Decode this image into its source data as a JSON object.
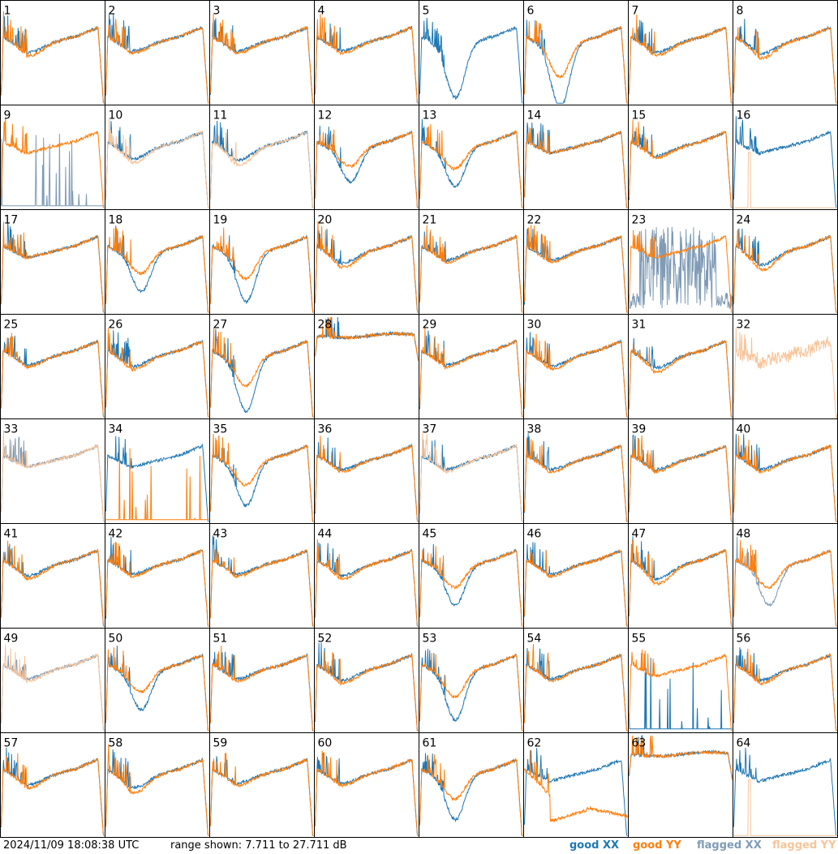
{
  "timestamp": "2024/11/09 18:08:38 UTC",
  "range_label": "range shown: 7.711 to 27.711 dB",
  "legend": [
    {
      "label": "good XX",
      "color": "#1f77b4"
    },
    {
      "label": "good YY",
      "color": "#ff7f0e"
    },
    {
      "label": "flagged XX",
      "color": "#7f9bb5"
    },
    {
      "label": "flagged YY",
      "color": "#f7c49a"
    }
  ],
  "chart_data": {
    "type": "line",
    "grid": "8x8 small multiples",
    "ylim_db": [
      7.711,
      27.711
    ],
    "series_names": [
      "good XX",
      "good YY",
      "flagged XX",
      "flagged YY"
    ],
    "panels": [
      {
        "id": "1",
        "xx": "good",
        "yy": "good",
        "shape": "std",
        "dip": 0.15
      },
      {
        "id": "2",
        "xx": "good",
        "yy": "good",
        "shape": "std",
        "dip": 0.1
      },
      {
        "id": "3",
        "xx": "good",
        "yy": "good",
        "shape": "std",
        "dip": 0.1
      },
      {
        "id": "4",
        "xx": "good",
        "yy": "good",
        "shape": "std",
        "dip": 0.1
      },
      {
        "id": "5",
        "xx": "good",
        "yy": "none",
        "shape": "valley",
        "dip": 0.5
      },
      {
        "id": "6",
        "xx": "good",
        "yy": "good",
        "shape": "valley",
        "dip": 0.6
      },
      {
        "id": "7",
        "xx": "good",
        "yy": "good",
        "shape": "std",
        "dip": 0.15
      },
      {
        "id": "8",
        "xx": "good",
        "yy": "good",
        "shape": "std",
        "dip": 0.2
      },
      {
        "id": "9",
        "xx": "flagged",
        "yy": "good",
        "shape": "xxlow",
        "dip": 0.1
      },
      {
        "id": "10",
        "xx": "good",
        "yy": "flagged",
        "shape": "std",
        "dip": 0.2
      },
      {
        "id": "11",
        "xx": "good",
        "yy": "flagged",
        "shape": "std",
        "dip": 0.25
      },
      {
        "id": "12",
        "xx": "good",
        "yy": "good",
        "shape": "valley",
        "dip": 0.3
      },
      {
        "id": "13",
        "xx": "good",
        "yy": "good",
        "shape": "valley",
        "dip": 0.35
      },
      {
        "id": "14",
        "xx": "good",
        "yy": "good",
        "shape": "smooth",
        "dip": 0.05
      },
      {
        "id": "15",
        "xx": "good",
        "yy": "good",
        "shape": "std",
        "dip": 0.1
      },
      {
        "id": "16",
        "xx": "good",
        "yy": "flagged",
        "shape": "yyspike",
        "dip": 0.1
      },
      {
        "id": "17",
        "xx": "good",
        "yy": "good",
        "shape": "smooth",
        "dip": 0.05
      },
      {
        "id": "18",
        "xx": "good",
        "yy": "good",
        "shape": "valley",
        "dip": 0.35
      },
      {
        "id": "19",
        "xx": "good",
        "yy": "good",
        "shape": "valley",
        "dip": 0.45
      },
      {
        "id": "20",
        "xx": "good",
        "yy": "good",
        "shape": "std",
        "dip": 0.2
      },
      {
        "id": "21",
        "xx": "good",
        "yy": "good",
        "shape": "std",
        "dip": 0.1
      },
      {
        "id": "22",
        "xx": "good",
        "yy": "good",
        "shape": "std",
        "dip": 0.1
      },
      {
        "id": "23",
        "xx": "flagged",
        "yy": "good",
        "shape": "xxnoise",
        "dip": 0.1
      },
      {
        "id": "24",
        "xx": "good",
        "yy": "good",
        "shape": "std",
        "dip": 0.25
      },
      {
        "id": "25",
        "xx": "good",
        "yy": "good",
        "shape": "std",
        "dip": 0.1
      },
      {
        "id": "26",
        "xx": "good",
        "yy": "good",
        "shape": "std",
        "dip": 0.15
      },
      {
        "id": "27",
        "xx": "good",
        "yy": "good",
        "shape": "valley",
        "dip": 0.5
      },
      {
        "id": "28",
        "xx": "good",
        "yy": "good",
        "shape": "flat",
        "dip": 0.0
      },
      {
        "id": "29",
        "xx": "good",
        "yy": "good",
        "shape": "std",
        "dip": 0.1
      },
      {
        "id": "30",
        "xx": "good",
        "yy": "good",
        "shape": "std",
        "dip": 0.15
      },
      {
        "id": "31",
        "xx": "good",
        "yy": "good",
        "shape": "std",
        "dip": 0.2
      },
      {
        "id": "32",
        "xx": "none",
        "yy": "flagged",
        "shape": "noisy",
        "dip": 0.2
      },
      {
        "id": "33",
        "xx": "flagged",
        "yy": "flagged",
        "shape": "smooth",
        "dip": 0.1
      },
      {
        "id": "34",
        "xx": "good",
        "yy": "good",
        "shape": "yylow",
        "dip": 0.1
      },
      {
        "id": "35",
        "xx": "good",
        "yy": "good",
        "shape": "valley",
        "dip": 0.4
      },
      {
        "id": "36",
        "xx": "good",
        "yy": "good",
        "shape": "std",
        "dip": 0.1
      },
      {
        "id": "37",
        "xx": "good",
        "yy": "flagged",
        "shape": "std",
        "dip": 0.1
      },
      {
        "id": "38",
        "xx": "good",
        "yy": "good",
        "shape": "std",
        "dip": 0.1
      },
      {
        "id": "39",
        "xx": "good",
        "yy": "good",
        "shape": "std",
        "dip": 0.1
      },
      {
        "id": "40",
        "xx": "good",
        "yy": "good",
        "shape": "std",
        "dip": 0.1
      },
      {
        "id": "41",
        "xx": "good",
        "yy": "good",
        "shape": "std",
        "dip": 0.15
      },
      {
        "id": "42",
        "xx": "good",
        "yy": "good",
        "shape": "std",
        "dip": 0.1
      },
      {
        "id": "43",
        "xx": "good",
        "yy": "good",
        "shape": "std",
        "dip": 0.1
      },
      {
        "id": "44",
        "xx": "good",
        "yy": "good",
        "shape": "std",
        "dip": 0.15
      },
      {
        "id": "45",
        "xx": "good",
        "yy": "good",
        "shape": "valley",
        "dip": 0.35
      },
      {
        "id": "46",
        "xx": "good",
        "yy": "good",
        "shape": "std",
        "dip": 0.1
      },
      {
        "id": "47",
        "xx": "good",
        "yy": "good",
        "shape": "std",
        "dip": 0.25
      },
      {
        "id": "48",
        "xx": "flagged",
        "yy": "good",
        "shape": "valley",
        "dip": 0.35
      },
      {
        "id": "49",
        "xx": "flagged",
        "yy": "flagged",
        "shape": "std",
        "dip": 0.1
      },
      {
        "id": "50",
        "xx": "good",
        "yy": "good",
        "shape": "valley",
        "dip": 0.35
      },
      {
        "id": "51",
        "xx": "good",
        "yy": "good",
        "shape": "std",
        "dip": 0.1
      },
      {
        "id": "52",
        "xx": "good",
        "yy": "good",
        "shape": "std",
        "dip": 0.15
      },
      {
        "id": "53",
        "xx": "good",
        "yy": "good",
        "shape": "valley",
        "dip": 0.45
      },
      {
        "id": "54",
        "xx": "good",
        "yy": "good",
        "shape": "std",
        "dip": 0.1
      },
      {
        "id": "55",
        "xx": "good",
        "yy": "good",
        "shape": "xxlow",
        "dip": 0.1
      },
      {
        "id": "56",
        "xx": "good",
        "yy": "good",
        "shape": "std",
        "dip": 0.15
      },
      {
        "id": "57",
        "xx": "good",
        "yy": "good",
        "shape": "std",
        "dip": 0.15
      },
      {
        "id": "58",
        "xx": "good",
        "yy": "good",
        "shape": "std",
        "dip": 0.25
      },
      {
        "id": "59",
        "xx": "good",
        "yy": "good",
        "shape": "std",
        "dip": 0.1
      },
      {
        "id": "60",
        "xx": "good",
        "yy": "good",
        "shape": "std",
        "dip": 0.1
      },
      {
        "id": "61",
        "xx": "good",
        "yy": "good",
        "shape": "valley",
        "dip": 0.4
      },
      {
        "id": "62",
        "xx": "good",
        "yy": "good",
        "shape": "yylow2",
        "dip": 0.3
      },
      {
        "id": "63",
        "xx": "good",
        "yy": "good",
        "shape": "flat",
        "dip": 0.0
      },
      {
        "id": "64",
        "xx": "good",
        "yy": "flagged",
        "shape": "yyspike",
        "dip": 0.1
      }
    ]
  }
}
